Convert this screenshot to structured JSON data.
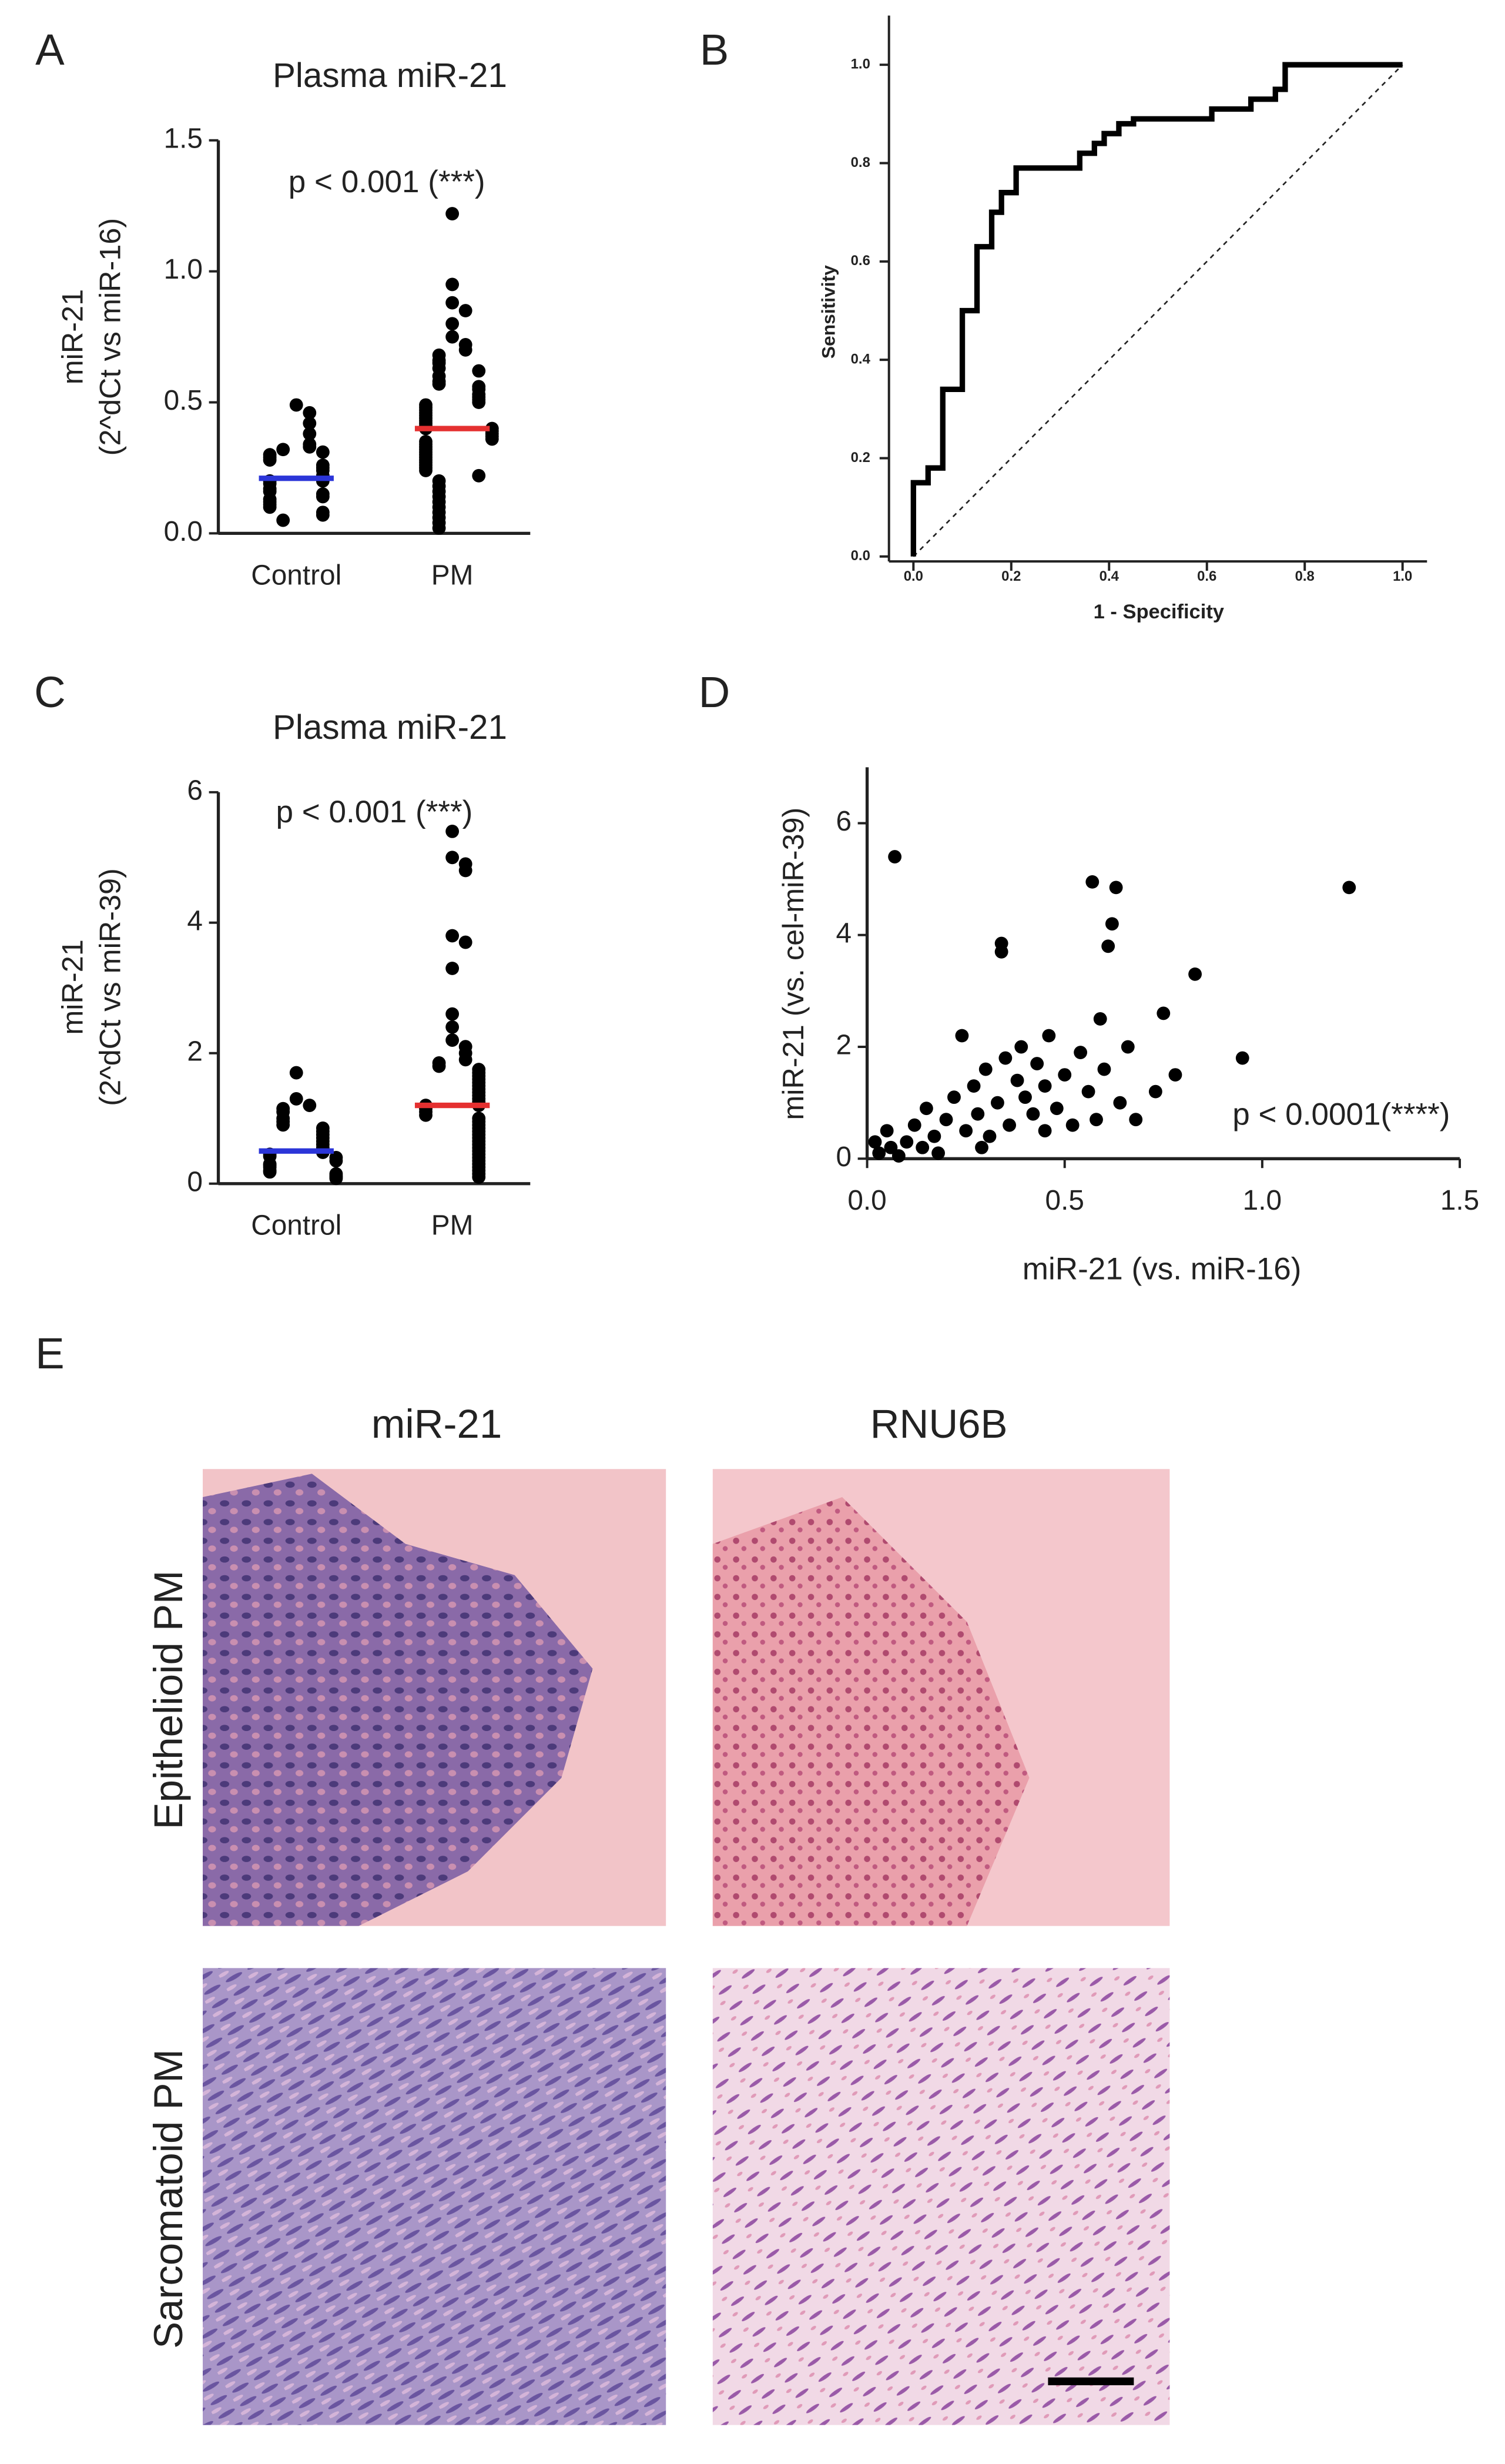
{
  "panels": {
    "letters": [
      "A",
      "B",
      "C",
      "D",
      "E"
    ],
    "image_columns": [
      "miR-21",
      "RNU6B"
    ],
    "image_rows": [
      "Epithelioid PM",
      "Sarcomatoid PM"
    ]
  },
  "chart_data": [
    {
      "type": "strip",
      "title": "Plasma miR-21",
      "annotation": "p < 0.001 (***)",
      "ylabel": [
        "miR-21",
        "(2^dCt vs miR-16)"
      ],
      "categories": [
        "Control",
        "PM"
      ],
      "color": "#000000",
      "series": [
        {
          "values": [
            0.49,
            0.46,
            0.42,
            0.38,
            0.34,
            0.33,
            0.32,
            0.31,
            0.3,
            0.29,
            0.28,
            0.26,
            0.25,
            0.24,
            0.22,
            0.21,
            0.2,
            0.2,
            0.19,
            0.17,
            0.16,
            0.15,
            0.14,
            0.13,
            0.12,
            0.11,
            0.1,
            0.08,
            0.07,
            0.05
          ]
        },
        {
          "values": [
            1.22,
            0.95,
            0.88,
            0.85,
            0.8,
            0.75,
            0.72,
            0.7,
            0.68,
            0.66,
            0.65,
            0.63,
            0.62,
            0.6,
            0.58,
            0.57,
            0.56,
            0.55,
            0.53,
            0.52,
            0.51,
            0.5,
            0.49,
            0.48,
            0.47,
            0.46,
            0.45,
            0.44,
            0.43,
            0.42,
            0.41,
            0.4,
            0.4,
            0.39,
            0.38,
            0.37,
            0.36,
            0.35,
            0.34,
            0.33,
            0.32,
            0.31,
            0.3,
            0.29,
            0.28,
            0.27,
            0.26,
            0.25,
            0.24,
            0.22,
            0.2,
            0.18,
            0.16,
            0.14,
            0.12,
            0.1,
            0.08,
            0.06,
            0.04,
            0.02
          ]
        }
      ],
      "medians": [
        0.21,
        0.4
      ],
      "median_colors": [
        "#2b35d8",
        "#e53030"
      ],
      "ylim": [
        0,
        1.5
      ],
      "yticks": [
        {
          "value": 0,
          "label": "0.0"
        },
        {
          "value": 0.5,
          "label": "0.5"
        },
        {
          "value": 1,
          "label": "1.0"
        },
        {
          "value": 1.5,
          "label": "1.5"
        }
      ]
    },
    {
      "type": "line",
      "xlabel": "1 - Specificity",
      "ylabel": [
        "Sensitivity"
      ],
      "color": "#000000",
      "x": [
        0,
        0,
        0.03,
        0.03,
        0.06,
        0.06,
        0.1,
        0.1,
        0.13,
        0.13,
        0.16,
        0.16,
        0.18,
        0.18,
        0.21,
        0.21,
        0.34,
        0.34,
        0.37,
        0.37,
        0.39,
        0.39,
        0.42,
        0.42,
        0.45,
        0.45,
        0.61,
        0.61,
        0.69,
        0.69,
        0.74,
        0.74,
        0.76,
        0.76,
        1
      ],
      "values": [
        0,
        0.15,
        0.15,
        0.18,
        0.18,
        0.34,
        0.34,
        0.5,
        0.5,
        0.63,
        0.63,
        0.7,
        0.7,
        0.74,
        0.74,
        0.79,
        0.79,
        0.82,
        0.82,
        0.84,
        0.84,
        0.86,
        0.86,
        0.88,
        0.88,
        0.89,
        0.89,
        0.91,
        0.91,
        0.93,
        0.93,
        0.95,
        0.95,
        1,
        1
      ],
      "xlim": [
        -0.05,
        1.05
      ],
      "ylim": [
        -0.01,
        1.1
      ],
      "xticks": [
        {
          "value": 0,
          "label": "0.0"
        },
        {
          "value": 0.2,
          "label": "0.2"
        },
        {
          "value": 0.4,
          "label": "0.4"
        },
        {
          "value": 0.6,
          "label": "0.6"
        },
        {
          "value": 0.8,
          "label": "0.8"
        },
        {
          "value": 1,
          "label": "1.0"
        }
      ],
      "yticks": [
        {
          "value": 0,
          "label": "0.0"
        },
        {
          "value": 0.2,
          "label": "0.2"
        },
        {
          "value": 0.4,
          "label": "0.4"
        },
        {
          "value": 0.6,
          "label": "0.6"
        },
        {
          "value": 0.8,
          "label": "0.8"
        },
        {
          "value": 1,
          "label": "1.0"
        }
      ]
    },
    {
      "type": "strip",
      "title": "Plasma miR-21",
      "annotation": "p < 0.001 (***)",
      "ylabel": [
        "miR-21",
        "(2^dCt vs miR-39)"
      ],
      "categories": [
        "Control",
        "PM"
      ],
      "color": "#000000",
      "series": [
        {
          "values": [
            1.7,
            1.3,
            1.2,
            1.15,
            1.1,
            1.0,
            0.95,
            0.9,
            0.85,
            0.8,
            0.75,
            0.7,
            0.65,
            0.6,
            0.55,
            0.5,
            0.48,
            0.45,
            0.42,
            0.4,
            0.35,
            0.3,
            0.28,
            0.25,
            0.2,
            0.18,
            0.15,
            0.12,
            0.1,
            0.08
          ]
        },
        {
          "values": [
            5.4,
            5.0,
            4.9,
            4.8,
            3.8,
            3.7,
            3.3,
            2.6,
            2.4,
            2.2,
            2.1,
            2.0,
            1.9,
            1.85,
            1.8,
            1.75,
            1.7,
            1.65,
            1.6,
            1.55,
            1.5,
            1.45,
            1.4,
            1.35,
            1.3,
            1.25,
            1.2,
            1.2,
            1.15,
            1.1,
            1.05,
            1.0,
            0.95,
            0.9,
            0.85,
            0.8,
            0.75,
            0.7,
            0.65,
            0.6,
            0.55,
            0.5,
            0.45,
            0.4,
            0.35,
            0.3,
            0.25,
            0.2,
            0.15,
            0.1
          ]
        }
      ],
      "medians": [
        0.5,
        1.2
      ],
      "median_colors": [
        "#2b35d8",
        "#e53030"
      ],
      "ylim": [
        0,
        6
      ],
      "yticks": [
        0,
        2,
        4,
        6
      ]
    },
    {
      "type": "scatter",
      "xlabel": "miR-21 (vs. miR-16)",
      "ylabel": [
        "miR-21 (vs. cel-miR-39)"
      ],
      "annotation": "p < 0.0001(****)",
      "color": "#000000",
      "x": [
        0.07,
        0.57,
        0.63,
        1.22,
        0.62,
        0.61,
        0.34,
        0.34,
        0.83,
        0.75,
        0.59,
        0.95,
        0.78,
        0.73,
        0.68,
        0.02,
        0.03,
        0.05,
        0.06,
        0.08,
        0.1,
        0.12,
        0.14,
        0.15,
        0.17,
        0.18,
        0.2,
        0.22,
        0.24,
        0.25,
        0.27,
        0.28,
        0.3,
        0.31,
        0.33,
        0.35,
        0.36,
        0.38,
        0.39,
        0.4,
        0.42,
        0.43,
        0.45,
        0.46,
        0.48,
        0.5,
        0.52,
        0.54,
        0.56,
        0.58,
        0.6,
        0.64,
        0.66,
        0.45,
        0.29
      ],
      "values": [
        5.4,
        4.95,
        4.85,
        4.85,
        4.2,
        3.8,
        3.85,
        3.7,
        3.3,
        2.6,
        2.5,
        1.8,
        1.5,
        1.2,
        0.7,
        0.3,
        0.1,
        0.5,
        0.2,
        0.05,
        0.3,
        0.6,
        0.2,
        0.9,
        0.4,
        0.1,
        0.7,
        1.1,
        2.2,
        0.5,
        1.3,
        0.8,
        1.6,
        0.4,
        1.0,
        1.8,
        0.6,
        1.4,
        2.0,
        1.1,
        0.8,
        1.7,
        1.3,
        2.2,
        0.9,
        1.5,
        0.6,
        1.9,
        1.2,
        0.7,
        1.6,
        1.0,
        2.0,
        0.5,
        0.2
      ],
      "xlim": [
        0,
        1.5
      ],
      "ylim": [
        0,
        7
      ],
      "xticks": [
        {
          "value": 0,
          "label": "0.0"
        },
        {
          "value": 0.5,
          "label": "0.5"
        },
        {
          "value": 1,
          "label": "1.0"
        },
        {
          "value": 1.5,
          "label": "1.5"
        }
      ],
      "yticks": [
        0,
        2,
        4,
        6
      ]
    }
  ]
}
